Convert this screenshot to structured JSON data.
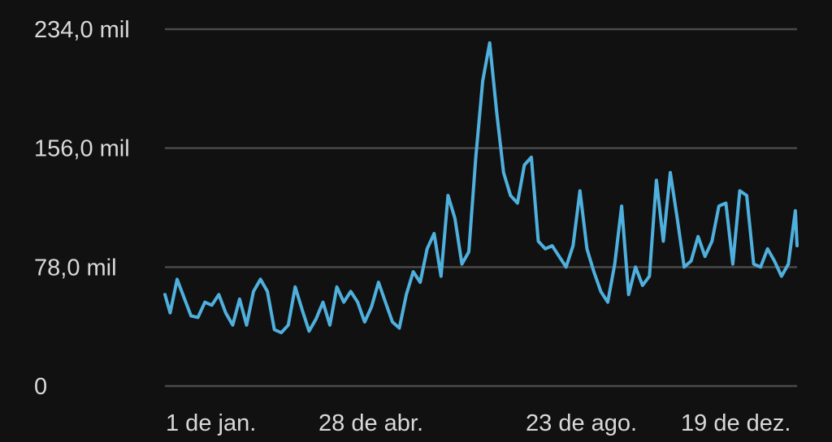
{
  "chart_data": {
    "type": "line",
    "title": "",
    "xlabel": "",
    "ylabel": "",
    "ylim": [
      0,
      234000
    ],
    "grid": true,
    "legend": "none",
    "y_ticks": [
      {
        "value": 0,
        "label": "0"
      },
      {
        "value": 78000,
        "label": "78,0 mil"
      },
      {
        "value": 156000,
        "label": "156,0 mil"
      },
      {
        "value": 234000,
        "label": "234,0 mil"
      }
    ],
    "x_ticks": [
      {
        "day": 1,
        "label": "1 de jan."
      },
      {
        "day": 118,
        "label": "28 de abr."
      },
      {
        "day": 235,
        "label": "23 de ago."
      },
      {
        "day": 353,
        "label": "19 de dez."
      }
    ],
    "colors": {
      "background": "#111111",
      "line": "#4fb0dd",
      "grid": "#4a4a4a",
      "text": "#d9d9d9"
    },
    "series": [
      {
        "x": [
          1,
          4,
          8,
          12,
          16,
          20,
          24,
          28,
          32,
          36,
          40,
          44,
          48,
          52,
          56,
          60,
          64,
          68,
          72,
          76,
          80,
          84,
          88,
          92,
          96,
          100,
          104,
          108,
          112,
          116,
          120,
          124,
          128,
          132,
          136,
          140,
          144,
          148,
          152,
          156,
          160,
          164,
          168,
          172,
          176,
          180,
          184,
          188,
          192,
          196,
          200,
          204,
          208,
          212,
          216,
          220,
          224,
          228,
          232,
          236,
          240,
          244,
          248,
          252,
          256,
          260,
          264,
          268,
          272,
          276,
          280,
          284,
          288,
          292,
          296,
          300,
          304,
          308,
          312,
          316,
          320,
          324,
          328,
          332,
          336,
          340,
          344,
          348,
          352,
          356,
          360,
          364,
          365
        ],
        "values": [
          60000,
          48000,
          70000,
          58000,
          46000,
          45000,
          55000,
          53000,
          60000,
          48000,
          40000,
          57000,
          40000,
          62000,
          70000,
          62000,
          37000,
          35000,
          40000,
          65000,
          50000,
          36000,
          44000,
          55000,
          40000,
          65000,
          55000,
          62000,
          55000,
          42000,
          52000,
          68000,
          55000,
          42000,
          38000,
          60000,
          75000,
          68000,
          90000,
          100000,
          72000,
          125000,
          110000,
          80000,
          88000,
          150000,
          200000,
          225000,
          180000,
          140000,
          125000,
          120000,
          145000,
          150000,
          95000,
          90000,
          92000,
          85000,
          78000,
          92000,
          128000,
          90000,
          75000,
          62000,
          55000,
          80000,
          118000,
          60000,
          78000,
          66000,
          72000,
          135000,
          95000,
          140000,
          110000,
          78000,
          82000,
          98000,
          85000,
          95000,
          118000,
          120000,
          80000,
          128000,
          125000,
          80000,
          78000,
          90000,
          82000,
          72000,
          80000,
          115000,
          92000
        ]
      }
    ]
  }
}
